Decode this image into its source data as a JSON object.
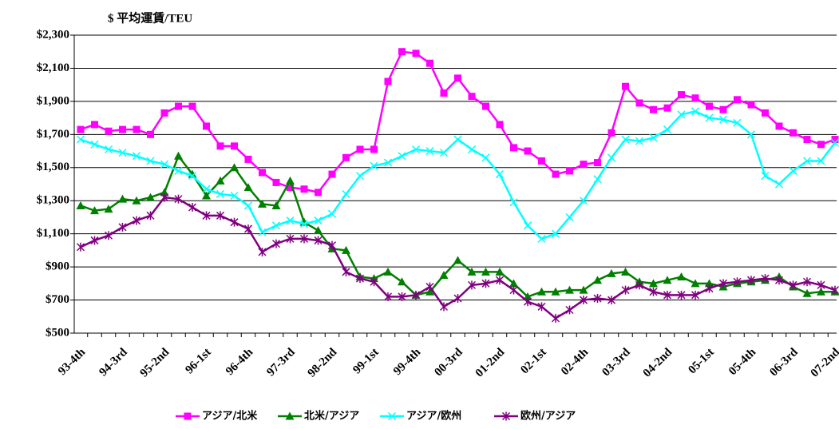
{
  "chart_data": {
    "type": "line",
    "title": "$ 平均運賃/TEU",
    "categories": [
      "93-4th",
      null,
      null,
      "94-3rd",
      null,
      null,
      "95-2nd",
      null,
      null,
      "96-1st",
      null,
      null,
      "96-4th",
      null,
      null,
      "97-3rd",
      null,
      null,
      "98-2nd",
      null,
      null,
      "99-1st",
      null,
      null,
      "99-4th",
      null,
      null,
      "00-3rd",
      null,
      null,
      "01-2nd",
      null,
      null,
      "02-1st",
      null,
      null,
      "02-4th",
      null,
      null,
      "03-3rd",
      null,
      null,
      "04-2nd",
      null,
      null,
      "05-1st",
      null,
      null,
      "05-4th",
      null,
      null,
      "06-3rd",
      null,
      null,
      "07-2nd"
    ],
    "ylim": [
      500,
      2300
    ],
    "yticks": [
      {
        "value": 500,
        "label": "$500"
      },
      {
        "value": 700,
        "label": "$700"
      },
      {
        "value": 900,
        "label": "$900"
      },
      {
        "value": 1100,
        "label": "$1,100"
      },
      {
        "value": 1300,
        "label": "$1,300"
      },
      {
        "value": 1500,
        "label": "$1,500"
      },
      {
        "value": 1700,
        "label": "$1,700"
      },
      {
        "value": 1900,
        "label": "$1,900"
      },
      {
        "value": 2100,
        "label": "$2,100"
      },
      {
        "value": 2300,
        "label": "$2,300"
      }
    ],
    "grid": true,
    "series": [
      {
        "name": "アジア/北米",
        "color": "#ff00ff",
        "marker": "square",
        "values": [
          1730,
          1760,
          1720,
          1730,
          1730,
          1700,
          1830,
          1870,
          1870,
          1750,
          1630,
          1630,
          1550,
          1470,
          1410,
          1380,
          1370,
          1350,
          1460,
          1560,
          1610,
          1610,
          2020,
          2200,
          2190,
          2130,
          1950,
          2040,
          1930,
          1870,
          1760,
          1620,
          1600,
          1540,
          1460,
          1480,
          1520,
          1530,
          1710,
          1990,
          1890,
          1850,
          1860,
          1940,
          1920,
          1870,
          1850,
          1910,
          1880,
          1830,
          1750,
          1710,
          1670,
          1640,
          1670
        ]
      },
      {
        "name": "北米/アジア",
        "color": "#008000",
        "marker": "triangle",
        "values": [
          1270,
          1240,
          1250,
          1310,
          1300,
          1320,
          1350,
          1570,
          1460,
          1330,
          1420,
          1500,
          1380,
          1280,
          1270,
          1420,
          1170,
          1120,
          1010,
          1000,
          840,
          830,
          870,
          810,
          730,
          750,
          850,
          940,
          870,
          870,
          870,
          800,
          720,
          750,
          750,
          760,
          760,
          820,
          860,
          870,
          810,
          800,
          820,
          840,
          800,
          800,
          780,
          800,
          810,
          820,
          840,
          780,
          740,
          750,
          750
        ]
      },
      {
        "name": "アジア/欧州",
        "color": "#00ffff",
        "marker": "x",
        "values": [
          1670,
          1640,
          1610,
          1590,
          1570,
          1540,
          1520,
          1480,
          1450,
          1370,
          1340,
          1330,
          1270,
          1110,
          1150,
          1180,
          1160,
          1180,
          1220,
          1340,
          1450,
          1510,
          1530,
          1570,
          1610,
          1600,
          1590,
          1670,
          1610,
          1560,
          1460,
          1290,
          1150,
          1070,
          1100,
          1200,
          1300,
          1430,
          1560,
          1670,
          1660,
          1680,
          1730,
          1820,
          1840,
          1800,
          1790,
          1770,
          1700,
          1450,
          1400,
          1480,
          1540,
          1540,
          1650
        ]
      },
      {
        "name": "欧州/アジア",
        "color": "#800080",
        "marker": "star",
        "values": [
          1020,
          1060,
          1090,
          1140,
          1180,
          1210,
          1320,
          1310,
          1260,
          1210,
          1210,
          1170,
          1130,
          990,
          1040,
          1070,
          1070,
          1060,
          1030,
          870,
          830,
          810,
          720,
          720,
          730,
          780,
          660,
          710,
          790,
          800,
          820,
          760,
          690,
          660,
          590,
          640,
          700,
          710,
          700,
          760,
          790,
          750,
          730,
          730,
          730,
          770,
          800,
          810,
          820,
          830,
          820,
          790,
          810,
          790,
          760
        ]
      }
    ]
  }
}
